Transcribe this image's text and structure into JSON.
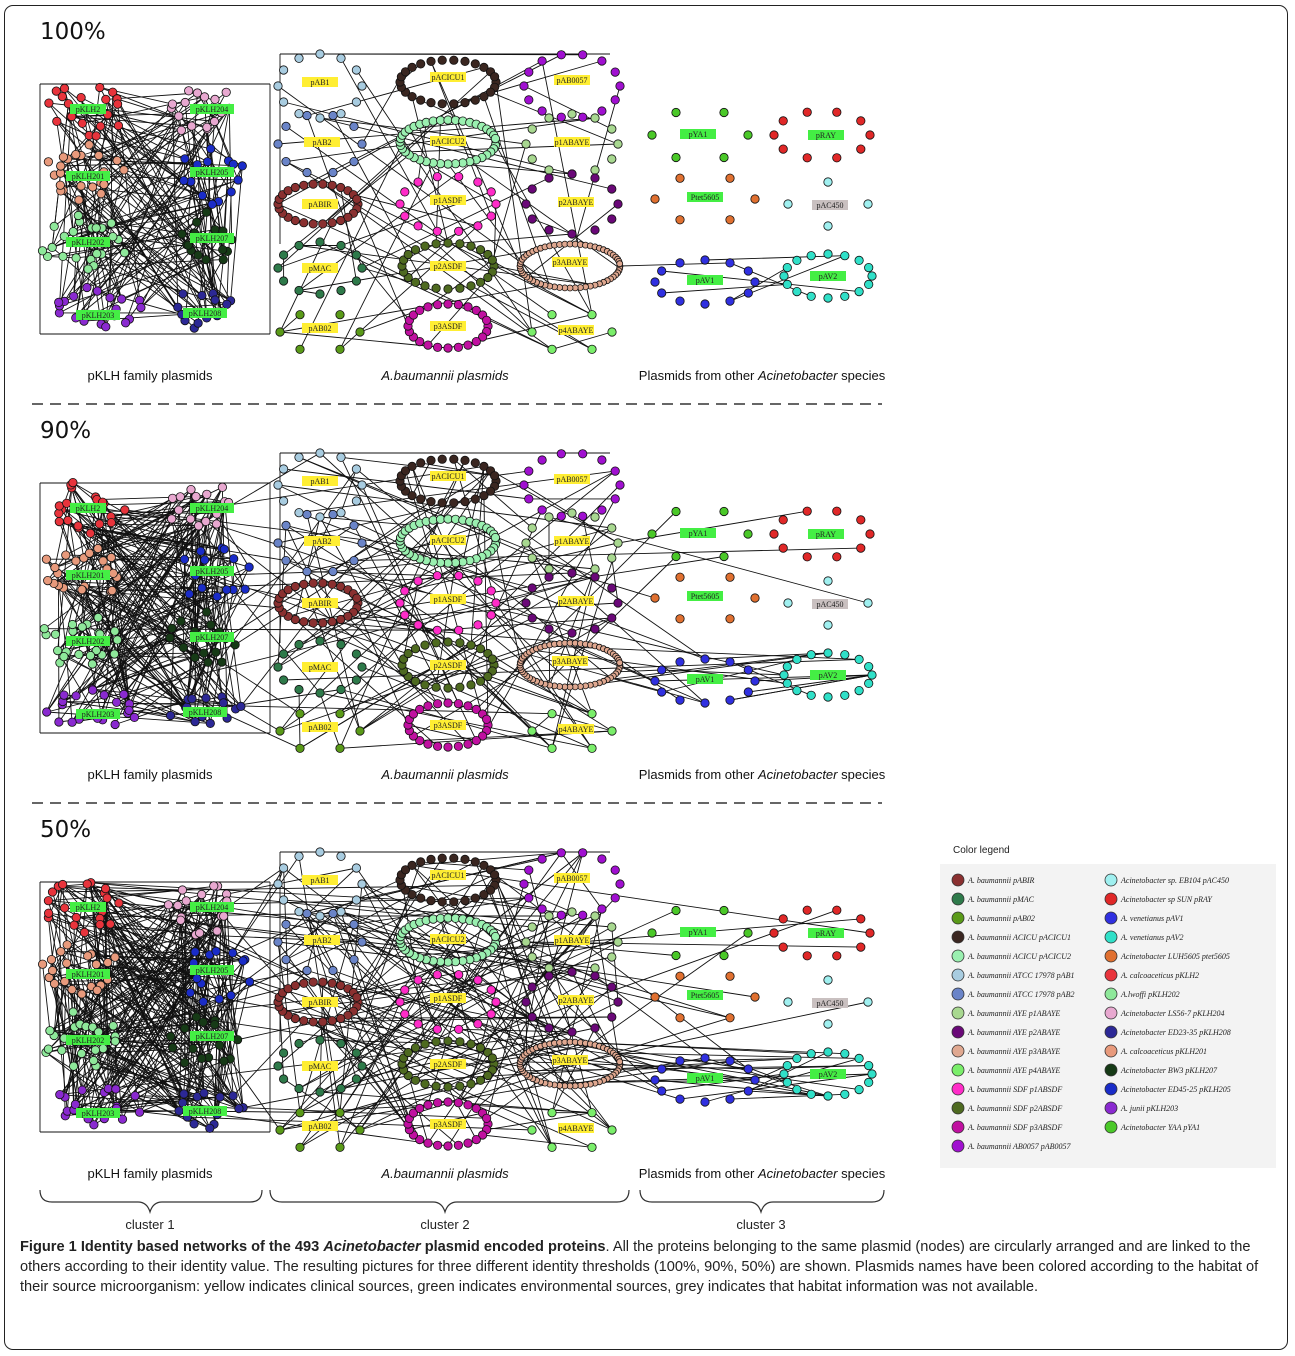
{
  "panels": [
    {
      "threshold": "100%",
      "edge_density": 1
    },
    {
      "threshold": "90%",
      "edge_density": 2
    },
    {
      "threshold": "50%",
      "edge_density": 3
    }
  ],
  "group_labels": {
    "pklh": "pKLH family plasmids",
    "abaumannii": "A.baumannii plasmids",
    "other_prefix": "Plasmids from other ",
    "other_genus": "Acinetobacter",
    "other_suffix": " species"
  },
  "habitat_colors": {
    "clinical": "#ffee33",
    "environmental": "#44ee44",
    "unknown": "#c9c0c0"
  },
  "plasmids": [
    {
      "name": "pKLH2",
      "habitat": "environmental",
      "color": "#e8343c"
    },
    {
      "name": "pKLH204",
      "habitat": "environmental",
      "color": "#e8a8d0"
    },
    {
      "name": "pKLH201",
      "habitat": "environmental",
      "color": "#e89a7c"
    },
    {
      "name": "pKLH205",
      "habitat": "environmental",
      "color": "#1a2cc8"
    },
    {
      "name": "pKLH202",
      "habitat": "environmental",
      "color": "#8ee89a"
    },
    {
      "name": "pKLH207",
      "habitat": "environmental",
      "color": "#163a16"
    },
    {
      "name": "pKLH203",
      "habitat": "environmental",
      "color": "#8a2ad0"
    },
    {
      "name": "pKLH208",
      "habitat": "environmental",
      "color": "#2c2896"
    },
    {
      "name": "pAB1",
      "habitat": "clinical",
      "color": "#a8cce0"
    },
    {
      "name": "pACICU1",
      "habitat": "clinical",
      "color": "#3a2620"
    },
    {
      "name": "pAB0057",
      "habitat": "clinical",
      "color": "#a010d0"
    },
    {
      "name": "pAB2",
      "habitat": "clinical",
      "color": "#6a84c8"
    },
    {
      "name": "pACICU2",
      "habitat": "clinical",
      "color": "#9af0b0"
    },
    {
      "name": "p1ABAYE",
      "habitat": "clinical",
      "color": "#a8d890"
    },
    {
      "name": "pABIR",
      "habitat": "clinical",
      "color": "#8a3030"
    },
    {
      "name": "p1ASDF",
      "habitat": "clinical",
      "color": "#ff2cc8"
    },
    {
      "name": "p2ABAYE",
      "habitat": "clinical",
      "color": "#6a0878"
    },
    {
      "name": "pMAC",
      "habitat": "clinical",
      "color": "#2e7a4a"
    },
    {
      "name": "p2ASDF",
      "habitat": "clinical",
      "color": "#4e6a20"
    },
    {
      "name": "p3ABAYE",
      "habitat": "clinical",
      "color": "#e0a890"
    },
    {
      "name": "pAB02",
      "habitat": "clinical",
      "color": "#5a9a18"
    },
    {
      "name": "p3ASDF",
      "habitat": "clinical",
      "color": "#c010a0"
    },
    {
      "name": "p4ABAYE",
      "habitat": "clinical",
      "color": "#7aee6a"
    },
    {
      "name": "pYA1",
      "habitat": "environmental",
      "color": "#4ac828"
    },
    {
      "name": "pRAY",
      "habitat": "environmental",
      "color": "#e02828"
    },
    {
      "name": "Ptet5605",
      "habitat": "environmental",
      "color": "#e07030"
    },
    {
      "name": "pAC450",
      "habitat": "unknown",
      "color": "#a0f0f0"
    },
    {
      "name": "pAV1",
      "habitat": "environmental",
      "color": "#3030e0"
    },
    {
      "name": "pAV2",
      "habitat": "environmental",
      "color": "#30e0c8"
    }
  ],
  "legend": {
    "title": "Color legend",
    "left": [
      {
        "text": "A. baumannii pABIR",
        "color": "#8a3030"
      },
      {
        "text": "A. baumannii pMAC",
        "color": "#2e7a4a"
      },
      {
        "text": "A. baumannii pAB02",
        "color": "#5a9a18"
      },
      {
        "text": "A. baumannii ACICU pACICU1",
        "color": "#3a2620"
      },
      {
        "text": "A. baumannii ACICU pACICU2",
        "color": "#9af0b0"
      },
      {
        "text": "A. baumannii ATCC 17978 pAB1",
        "color": "#a8cce0"
      },
      {
        "text": "A. baumannii ATCC 17978 pAB2",
        "color": "#6a84c8"
      },
      {
        "text": "A. baumannii AYE p1ABAYE",
        "color": "#a8d890"
      },
      {
        "text": "A. baumannii AYE p2ABAYE",
        "color": "#6a0878"
      },
      {
        "text": "A.  baumannii AYE p3ABAYE",
        "color": "#e0a890"
      },
      {
        "text": "A. baumannii AYE p4ABAYE",
        "color": "#7aee6a"
      },
      {
        "text": "A. baumannii SDF p1ABSDF",
        "color": "#ff2cc8"
      },
      {
        "text": "A. baumannii SDF p2ABSDF",
        "color": "#4e6a20"
      },
      {
        "text": "A. baumannii SDF p3ABSDF",
        "color": "#c010a0"
      },
      {
        "text": "A. baumannii AB0057 pAB0057",
        "color": "#a010d0"
      }
    ],
    "right": [
      {
        "text": "Acinetobacter sp. EB104 pAC450",
        "color": "#a0f0f0"
      },
      {
        "text": "Acinetobacter sp SUN pRAY",
        "color": "#e02828"
      },
      {
        "text": "A. venetianus pAV1",
        "color": "#3030e0"
      },
      {
        "text": "A. venetianus pAV2",
        "color": "#30e0c8"
      },
      {
        "text": "Acinetobacter LUH5605 ptet5605",
        "color": "#e07030"
      },
      {
        "text": "A. calcoaceticus pKLH2",
        "color": "#e8343c"
      },
      {
        "text": "A.lwoffi pKLH202",
        "color": "#8ee89a"
      },
      {
        "text": "Acinetobacter LS56-7 pKLH204",
        "color": "#e8a8d0"
      },
      {
        "text": "Acinetobacter ED23-35 pKLH208",
        "color": "#2c2896"
      },
      {
        "text": "A. calcoaceticus pKLH201",
        "color": "#e89a7c"
      },
      {
        "text": "Acinetobacter BW3 pKLH207",
        "color": "#163a16"
      },
      {
        "text": "Acinetobacter ED45-25 pKLH205",
        "color": "#1a2cc8"
      },
      {
        "text": "A. junii pKLH203",
        "color": "#8a2ad0"
      },
      {
        "text": "Acinetobacter YAA pYA1",
        "color": "#4ac828"
      }
    ]
  },
  "clusters": [
    "cluster 1",
    "cluster 2",
    "cluster 3"
  ],
  "caption": {
    "title_1": "Figure 1 Identity based networks of the 493 ",
    "title_italic": "Acinetobacter",
    "title_2": " plasmid encoded proteins",
    "body": ". All the proteins belonging to the same plasmid (nodes) are circularly arranged and are linked to the others according to their identity value. The resulting pictures for three different identity thresholds (100%, 90%, 50%) are shown. Plasmids names have been colored according to the habitat of their source microorganism: yellow indicates clinical sources, green indicates environmental sources, grey indicates that habitat information was not available."
  }
}
